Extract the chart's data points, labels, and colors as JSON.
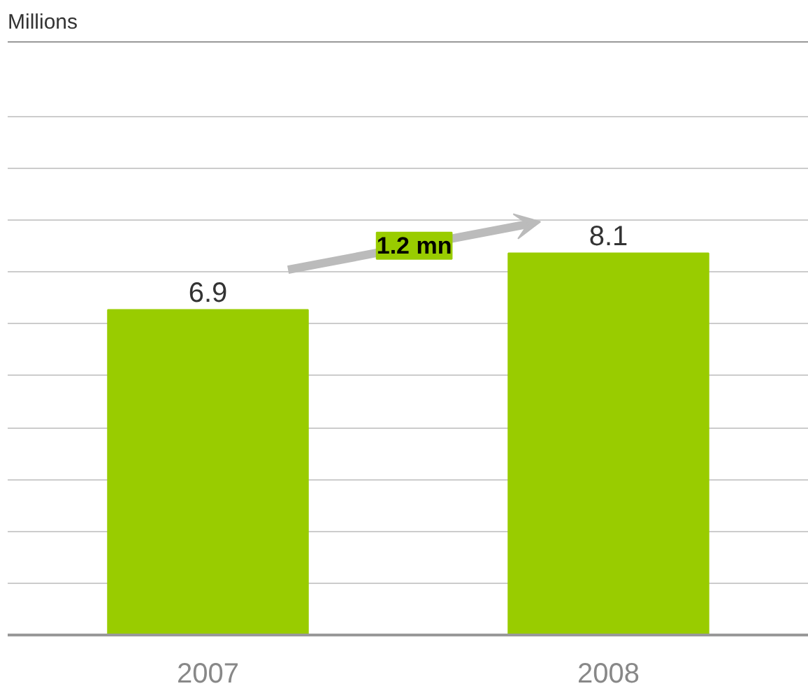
{
  "chart_data": {
    "type": "bar",
    "ylabel": "Millions",
    "categories": [
      "2007",
      "2008"
    ],
    "values": [
      6.9,
      8.1
    ],
    "color": "#99cc00",
    "data_labels": true,
    "annotations": [
      "1.2 mn"
    ],
    "ylim": [
      0,
      12.6
    ],
    "yticks": [
      {
        "value": 1.1,
        "label": null
      },
      {
        "value": 2.2,
        "label": null
      },
      {
        "value": 3.3,
        "label": null
      },
      {
        "value": 4.4,
        "label": null
      },
      {
        "value": 5.5,
        "label": null
      },
      {
        "value": 6.6,
        "label": null
      },
      {
        "value": 7.7,
        "label": null
      },
      {
        "value": 8.8,
        "label": null
      },
      {
        "value": 9.9,
        "label": null
      },
      {
        "value": 11.0,
        "label": null
      }
    ],
    "grid": "y",
    "tick_labels": "x"
  }
}
